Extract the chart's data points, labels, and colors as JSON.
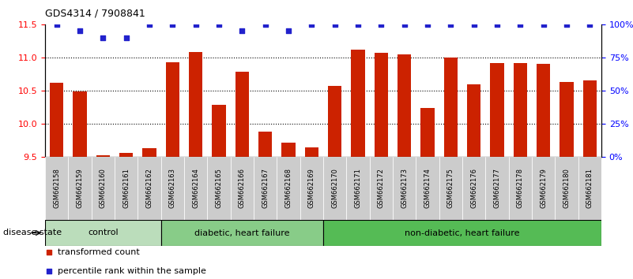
{
  "title": "GDS4314 / 7908841",
  "samples": [
    "GSM662158",
    "GSM662159",
    "GSM662160",
    "GSM662161",
    "GSM662162",
    "GSM662163",
    "GSM662164",
    "GSM662165",
    "GSM662166",
    "GSM662167",
    "GSM662168",
    "GSM662169",
    "GSM662170",
    "GSM662171",
    "GSM662172",
    "GSM662173",
    "GSM662174",
    "GSM662175",
    "GSM662176",
    "GSM662177",
    "GSM662178",
    "GSM662179",
    "GSM662180",
    "GSM662181"
  ],
  "bar_values": [
    10.62,
    10.49,
    9.52,
    9.56,
    9.63,
    10.93,
    11.08,
    10.28,
    10.78,
    9.88,
    9.72,
    9.64,
    10.57,
    11.12,
    11.07,
    11.05,
    10.24,
    11.0,
    10.6,
    10.92,
    10.92,
    10.9,
    10.63,
    10.65
  ],
  "percentile_values": [
    100,
    95,
    90,
    90,
    100,
    100,
    100,
    100,
    95,
    100,
    95,
    100,
    100,
    100,
    100,
    100,
    100,
    100,
    100,
    100,
    100,
    100,
    100,
    100
  ],
  "ylim_left": [
    9.5,
    11.5
  ],
  "ylim_right": [
    0,
    100
  ],
  "yticks_left": [
    9.5,
    10.0,
    10.5,
    11.0,
    11.5
  ],
  "yticks_right": [
    0,
    25,
    50,
    75,
    100
  ],
  "ytick_labels_right": [
    "0%",
    "25%",
    "50%",
    "75%",
    "100%"
  ],
  "bar_color": "#cc2200",
  "dot_color": "#2222cc",
  "groups": [
    {
      "label": "control",
      "start": 0,
      "end": 5,
      "color": "#bbddbb"
    },
    {
      "label": "diabetic, heart failure",
      "start": 5,
      "end": 12,
      "color": "#88cc88"
    },
    {
      "label": "non-diabetic, heart failure",
      "start": 12,
      "end": 24,
      "color": "#55bb55"
    }
  ],
  "disease_state_label": "disease state",
  "legend_items": [
    {
      "label": "transformed count",
      "color": "#cc2200"
    },
    {
      "label": "percentile rank within the sample",
      "color": "#2222cc"
    }
  ],
  "background_color": "#ffffff",
  "label_area_color": "#cccccc",
  "ticklabel_fontsize": 6.0,
  "title_fontsize": 9,
  "group_fontsize": 8,
  "legend_fontsize": 8
}
